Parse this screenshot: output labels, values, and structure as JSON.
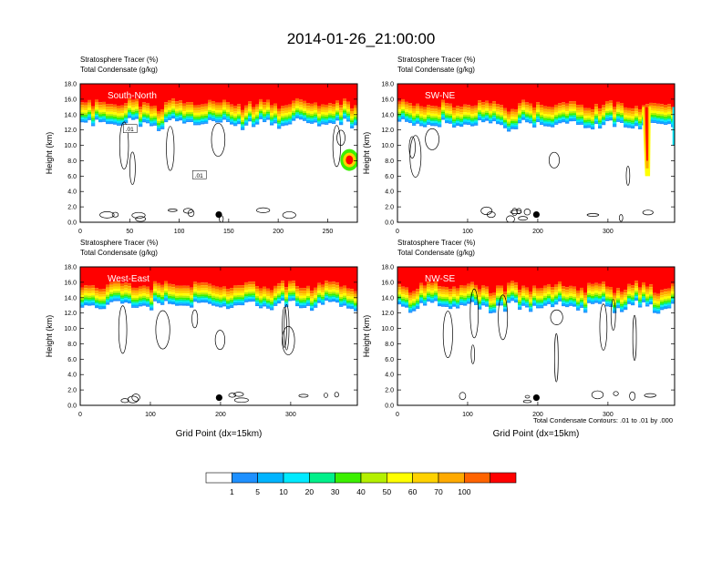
{
  "title": "2014-01-26_21:00:00",
  "chart_data": [
    {
      "type": "heatmap",
      "header_line1": "Stratosphere Tracer   (%)",
      "header_line2": "Total Condensate   (g/kg)",
      "panel_label": "South-North",
      "ylabel": "Height (km)",
      "xlabel": "",
      "xlim": [
        0,
        280
      ],
      "ylim": [
        0,
        18
      ],
      "xticks": [
        "0",
        "50",
        "100",
        "150",
        "200",
        "250"
      ],
      "xtick_values": [
        0,
        50,
        100,
        150,
        200,
        250
      ],
      "yticks": [
        "0.0",
        "2.0",
        "4.0",
        "6.0",
        "8.0",
        "10.0",
        "12.0",
        "14.0",
        "16.0",
        "18.0"
      ],
      "contour_labels": [
        ".01",
        ".01"
      ],
      "tropopause_km": 15.2,
      "marker_x": 140
    },
    {
      "type": "heatmap",
      "header_line1": "Stratosphere Tracer   (%)",
      "header_line2": "Total Condensate   (g/kg)",
      "panel_label": "SW-NE",
      "ylabel": "Height (km)",
      "xlabel": "",
      "xlim": [
        0,
        395
      ],
      "ylim": [
        0,
        18
      ],
      "xticks": [
        "0",
        "100",
        "200",
        "300"
      ],
      "xtick_values": [
        0,
        100,
        200,
        300
      ],
      "yticks": [
        "0.0",
        "2.0",
        "4.0",
        "6.0",
        "8.0",
        "10.0",
        "12.0",
        "14.0",
        "16.0",
        "18.0"
      ],
      "contour_labels": [],
      "tropopause_km": 15.0,
      "marker_x": 198
    },
    {
      "type": "heatmap",
      "header_line1": "Stratosphere Tracer   (%)",
      "header_line2": "Total Condensate   (g/kg)",
      "panel_label": "West-East",
      "ylabel": "Height (km)",
      "xlabel": "Grid Point (dx=15km)",
      "xlim": [
        0,
        395
      ],
      "ylim": [
        0,
        18
      ],
      "xticks": [
        "0",
        "100",
        "200",
        "300"
      ],
      "xtick_values": [
        0,
        100,
        200,
        300
      ],
      "yticks": [
        "0.0",
        "2.0",
        "4.0",
        "6.0",
        "8.0",
        "10.0",
        "12.0",
        "14.0",
        "16.0",
        "18.0"
      ],
      "contour_labels": [],
      "tropopause_km": 15.3,
      "marker_x": 198
    },
    {
      "type": "heatmap",
      "header_line1": "Stratosphere Tracer   (%)",
      "header_line2": "Total Condensate   (g/kg)",
      "panel_label": "NW-SE",
      "ylabel": "Height (km)",
      "xlabel": "Grid Point (dx=15km)",
      "xlim": [
        0,
        395
      ],
      "ylim": [
        0,
        18
      ],
      "xticks": [
        "0",
        "100",
        "200",
        "300"
      ],
      "xtick_values": [
        0,
        100,
        200,
        300
      ],
      "yticks": [
        "0.0",
        "2.0",
        "4.0",
        "6.0",
        "8.0",
        "10.0",
        "12.0",
        "14.0",
        "16.0",
        "18.0"
      ],
      "contour_labels": [],
      "tropopause_km": 15.2,
      "marker_x": 198
    }
  ],
  "contour_note": "Total Condensate Contours: .01 to .01 by .000",
  "colorbar": {
    "colors": [
      "#ffffff",
      "#1e90ff",
      "#00b4ff",
      "#00eaff",
      "#00f08a",
      "#3cf000",
      "#b4f000",
      "#ffff00",
      "#ffd200",
      "#ffaa00",
      "#ff6400",
      "#ff0000"
    ],
    "labels": [
      "1",
      "5",
      "10",
      "20",
      "30",
      "40",
      "50",
      "60",
      "70",
      "100"
    ]
  }
}
